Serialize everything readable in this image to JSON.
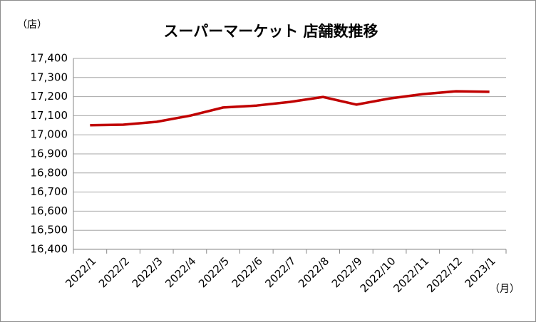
{
  "chart_data": {
    "type": "line",
    "title": "スーパーマーケット 店舗数推移",
    "y_unit": "（店）",
    "x_unit": "（月）",
    "categories": [
      "2022/1",
      "2022/2",
      "2022/3",
      "2022/4",
      "2022/5",
      "2022/6",
      "2022/7",
      "2022/8",
      "2022/9",
      "2022/10",
      "2022/11",
      "2022/12",
      "2023/1"
    ],
    "series": [
      {
        "name": "店舗数",
        "color": "#c00000",
        "values": [
          17050,
          17053,
          17068,
          17100,
          17143,
          17153,
          17172,
          17198,
          17158,
          17190,
          17213,
          17228,
          17225
        ]
      }
    ],
    "ylim": [
      16400,
      17400
    ],
    "yticks": [
      {
        "value": 16400,
        "label": "16,400"
      },
      {
        "value": 16500,
        "label": "16,500"
      },
      {
        "value": 16600,
        "label": "16,600"
      },
      {
        "value": 16700,
        "label": "16,700"
      },
      {
        "value": 16800,
        "label": "16,800"
      },
      {
        "value": 16900,
        "label": "16,900"
      },
      {
        "value": 17000,
        "label": "17,000"
      },
      {
        "value": 17100,
        "label": "17,100"
      },
      {
        "value": 17200,
        "label": "17,200"
      },
      {
        "value": 17300,
        "label": "17,300"
      },
      {
        "value": 17400,
        "label": "17,400"
      }
    ],
    "grid": true
  }
}
